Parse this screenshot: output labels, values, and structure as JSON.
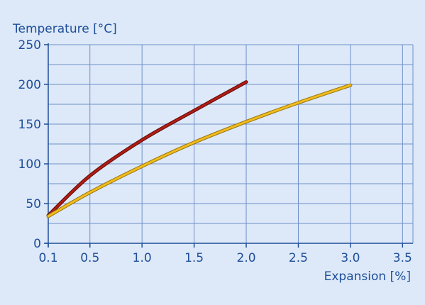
{
  "chart_data": {
    "type": "line",
    "title": "",
    "ylabel": "Temperature [°C]",
    "xlabel": "Expansion [%]",
    "xlim": [
      0.1,
      3.6
    ],
    "ylim": [
      0,
      250
    ],
    "x_ticks": [
      0.1,
      0.5,
      1.0,
      1.5,
      2.0,
      2.5,
      3.0,
      3.5
    ],
    "x_tick_labels": [
      "0.1",
      "0.5",
      "1.0",
      "1.5",
      "2.0",
      "2.5",
      "3.0",
      "3.5"
    ],
    "y_ticks": [
      0,
      50,
      100,
      150,
      200,
      250
    ],
    "y_tick_labels": [
      "0",
      "50",
      "100",
      "150",
      "200",
      "250"
    ],
    "y_minor_grid": [
      25,
      75,
      125,
      175,
      225
    ],
    "grid": true,
    "legend": "none",
    "series": [
      {
        "color": "#b01c14",
        "x": [
          0.1,
          0.5,
          1.0,
          1.5,
          2.0
        ],
        "y": [
          35,
          85,
          130,
          167,
          203
        ]
      },
      {
        "color": "#f0bc1c",
        "x": [
          0.1,
          0.5,
          1.0,
          1.5,
          2.0,
          2.5,
          3.0
        ],
        "y": [
          34,
          64,
          97,
          127,
          153,
          177,
          199
        ]
      }
    ],
    "colors": {
      "background": "#dde9f8",
      "plot_background": "#dde9f8",
      "grid": "#6f8fc9",
      "axis": "#1f4e99",
      "text": "#1f4e99"
    }
  }
}
